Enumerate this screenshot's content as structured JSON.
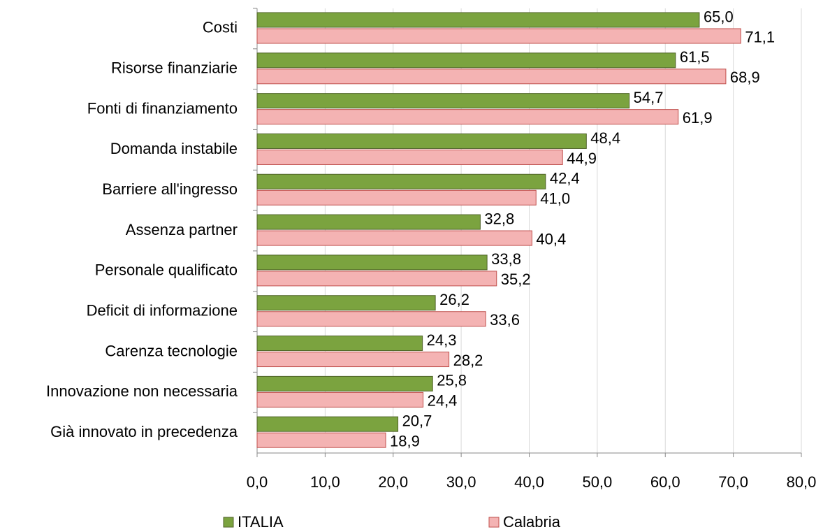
{
  "chart_data": {
    "type": "hbar",
    "categories": [
      "Costi",
      "Risorse finanziarie",
      "Fonti di finanziamento",
      "Domanda instabile",
      "Barriere all'ingresso",
      "Assenza partner",
      "Personale qualificato",
      "Deficit di informazione",
      "Carenza tecnologie",
      "Innovazione non necessaria",
      "Già innovato in precedenza"
    ],
    "series": [
      {
        "name": "ITALIA",
        "color": "#7ba33f",
        "values": [
          65.0,
          61.5,
          54.7,
          48.4,
          42.4,
          32.8,
          33.8,
          26.2,
          24.3,
          25.8,
          20.7
        ],
        "value_labels": [
          "65,0",
          "61,5",
          "54,7",
          "48,4",
          "42,4",
          "32,8",
          "33,8",
          "26,2",
          "24,3",
          "25,8",
          "20,7"
        ]
      },
      {
        "name": "Calabria",
        "color": "#f4b3b3",
        "values": [
          71.1,
          68.9,
          61.9,
          44.9,
          41.0,
          40.4,
          35.2,
          33.6,
          28.2,
          24.4,
          18.9
        ],
        "value_labels": [
          "71,1",
          "68,9",
          "61,9",
          "44,9",
          "41,0",
          "40,4",
          "35,2",
          "33,6",
          "28,2",
          "24,4",
          "18,9"
        ]
      }
    ],
    "xlim": [
      0,
      80
    ],
    "xticks": [
      {
        "value": 0,
        "label": "0,0"
      },
      {
        "value": 10,
        "label": "10,0"
      },
      {
        "value": 20,
        "label": "20,0"
      },
      {
        "value": 30,
        "label": "30,0"
      },
      {
        "value": 40,
        "label": "40,0"
      },
      {
        "value": 50,
        "label": "50,0"
      },
      {
        "value": 60,
        "label": "60,0"
      },
      {
        "value": 70,
        "label": "70,0"
      },
      {
        "value": 80,
        "label": "80,0"
      }
    ],
    "grid": true,
    "legend": "bottom"
  }
}
